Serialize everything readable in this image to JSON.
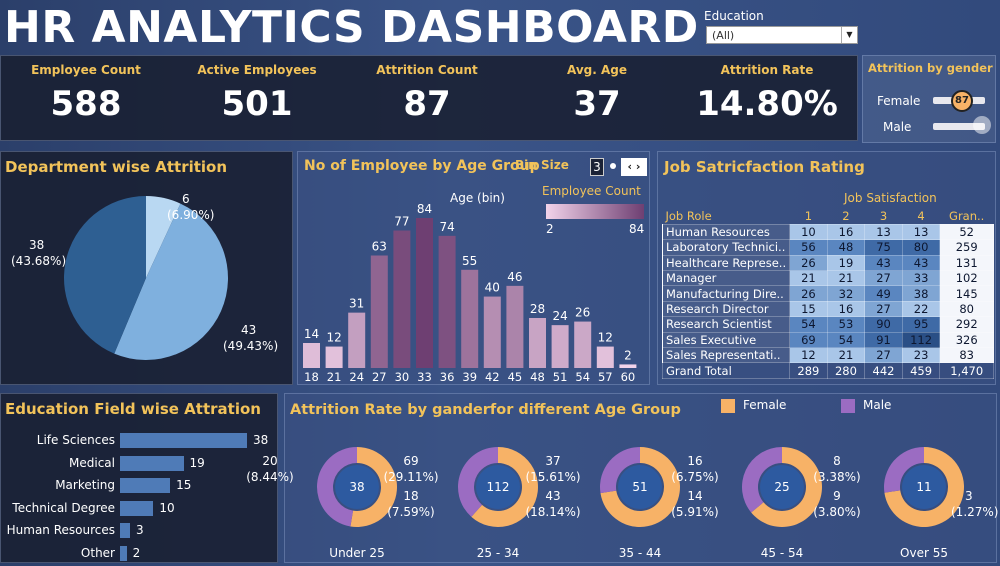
{
  "header": {
    "title": "HR ANALYTICS DASHBOARD"
  },
  "filter": {
    "label": "Education",
    "value": "(All)"
  },
  "kpis": [
    {
      "label": "Employee Count",
      "value": "588"
    },
    {
      "label": "Active Employees",
      "value": "501"
    },
    {
      "label": "Attrition Count",
      "value": "87"
    },
    {
      "label": "Avg. Age",
      "value": "37"
    },
    {
      "label": "Attrition Rate",
      "value": "14.80%"
    }
  ],
  "gender_attrition": {
    "title": "Attrition by gender",
    "rows": [
      {
        "label": "Female",
        "value": "87",
        "fraction": 1.0
      },
      {
        "label": "Male",
        "value": "",
        "fraction": 0.0
      }
    ]
  },
  "department": {
    "title": "Department wise Attrition",
    "labels": [
      {
        "count": "6",
        "pct": "(6.90%)"
      },
      {
        "count": "38",
        "pct": "(43.68%)"
      },
      {
        "count": "43",
        "pct": "(49.43%)"
      }
    ]
  },
  "age_group": {
    "title": "No of Employee by Age Group",
    "bin_label": "Bin Size",
    "bin_value": "3",
    "axis_title": "Age (bin)",
    "legend_title": "Employee Count",
    "legend_min": "2",
    "legend_max": "84"
  },
  "job_satisfaction": {
    "title": "Job Satricfaction Rating",
    "header": "Job Satisfaction",
    "role_header": "Job Role",
    "levels": [
      "1",
      "2",
      "3",
      "4"
    ],
    "grand_header": "Gran..",
    "rows": [
      {
        "role": "Human Resources",
        "v": [
          "10",
          "16",
          "13",
          "13"
        ],
        "total": "52"
      },
      {
        "role": "Laboratory Technici..",
        "v": [
          "56",
          "48",
          "75",
          "80"
        ],
        "total": "259"
      },
      {
        "role": "Healthcare Represe..",
        "v": [
          "26",
          "19",
          "43",
          "43"
        ],
        "total": "131"
      },
      {
        "role": "Manager",
        "v": [
          "21",
          "21",
          "27",
          "33"
        ],
        "total": "102"
      },
      {
        "role": "Manufacturing Dire..",
        "v": [
          "26",
          "32",
          "49",
          "38"
        ],
        "total": "145"
      },
      {
        "role": "Research Director",
        "v": [
          "15",
          "16",
          "27",
          "22"
        ],
        "total": "80"
      },
      {
        "role": "Research Scientist",
        "v": [
          "54",
          "53",
          "90",
          "95"
        ],
        "total": "292"
      },
      {
        "role": "Sales Executive",
        "v": [
          "69",
          "54",
          "91",
          "112"
        ],
        "total": "326"
      },
      {
        "role": "Sales Representati..",
        "v": [
          "12",
          "21",
          "27",
          "23"
        ],
        "total": "83"
      }
    ],
    "grand_total": {
      "role": "Grand Total",
      "v": [
        "289",
        "280",
        "442",
        "459"
      ],
      "total": "1,470"
    }
  },
  "education_field": {
    "title": "Education Field wise Attration",
    "items": [
      {
        "label": "Life Sciences",
        "value": "38"
      },
      {
        "label": "Medical",
        "value": "19"
      },
      {
        "label": "Marketing",
        "value": "15"
      },
      {
        "label": "Technical Degree",
        "value": "10"
      },
      {
        "label": "Human Resources",
        "value": "3"
      },
      {
        "label": "Other",
        "value": "2"
      }
    ]
  },
  "age_gender": {
    "title": "Attrition Rate by ganderfor different Age Group",
    "legend": [
      {
        "label": "Female"
      },
      {
        "label": "Male"
      }
    ],
    "groups": [
      {
        "name": "Under 25",
        "total": "38",
        "a_count": "20",
        "a_pct": "(8.44%)",
        "b_count": "",
        "b_pct": ""
      },
      {
        "name": "25 - 34",
        "total": "112",
        "a_count": "69",
        "a_pct": "(29.11%)",
        "b_count": "18",
        "b_pct": "(7.59%)"
      },
      {
        "name": "35 - 44",
        "total": "51",
        "a_count": "37",
        "a_pct": "(15.61%)",
        "b_count": "43",
        "b_pct": "(18.14%)"
      },
      {
        "name": "45 - 54",
        "total": "25",
        "a_count": "16",
        "a_pct": "(6.75%)",
        "b_count": "14",
        "b_pct": "(5.91%)"
      },
      {
        "name": "Over 55",
        "total": "11",
        "a_count": "8",
        "a_pct": "(3.38%)",
        "b_count": "9",
        "b_pct": "(3.80%)"
      }
    ],
    "extra_label": {
      "count": "3",
      "pct": "(1.27%)"
    }
  },
  "colors": {
    "accent": "#f2c35a",
    "female": "#f7b267",
    "male": "#9b6cc2",
    "donut_center": "#2d5aa0",
    "bar": "#4f7bb7"
  },
  "chart_data": [
    {
      "type": "pie",
      "title": "Department wise Attrition",
      "values": [
        6,
        43,
        38
      ],
      "percents": [
        6.9,
        49.43,
        43.68
      ]
    },
    {
      "type": "bar",
      "title": "No of Employee by Age Group",
      "xlabel": "Age (bin)",
      "categories": [
        "18",
        "21",
        "24",
        "27",
        "30",
        "33",
        "36",
        "39",
        "42",
        "45",
        "48",
        "51",
        "54",
        "57",
        "60"
      ],
      "values": [
        14,
        12,
        31,
        63,
        77,
        84,
        74,
        55,
        40,
        46,
        28,
        24,
        26,
        12,
        2
      ],
      "ylim": [
        0,
        84
      ]
    },
    {
      "type": "bar",
      "title": "Education Field wise Attration",
      "categories": [
        "Life Sciences",
        "Medical",
        "Marketing",
        "Technical Degree",
        "Human Resources",
        "Other"
      ],
      "values": [
        38,
        19,
        15,
        10,
        3,
        2
      ]
    },
    {
      "type": "pie",
      "title": "Attrition Rate by ganderfor different Age Group",
      "categories": [
        "Under 25",
        "25 - 34",
        "35 - 44",
        "45 - 54",
        "Over 55"
      ],
      "totals": [
        38,
        112,
        51,
        25,
        11
      ],
      "series": [
        {
          "name": "Female",
          "values": [
            20,
            69,
            37,
            16,
            8
          ]
        },
        {
          "name": "Male",
          "values": [
            18,
            43,
            14,
            9,
            3
          ]
        }
      ]
    }
  ]
}
